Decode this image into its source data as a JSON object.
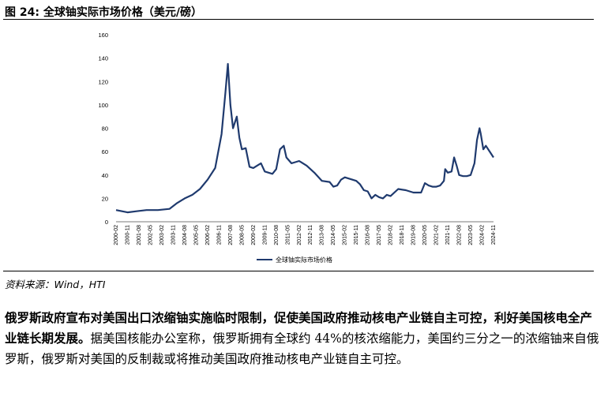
{
  "figure": {
    "title": "图 24:  全球铀实际市场价格（美元/磅）",
    "source": "资料来源：Wind，HTI"
  },
  "paragraph": {
    "bold": "俄罗斯政府宣布对美国出口浓缩铀实施临时限制，促使美国政府推动核电产业链自主可控，利好美国核电全产业链长期发展。",
    "normal": "据美国核能办公室称，俄罗斯拥有全球约 44%的核浓缩能力，美国约三分之一的浓缩铀来自俄罗斯，俄罗斯对美国的反制裁或将推动美国政府推动核电产业链自主可控。"
  },
  "chart_data": {
    "type": "line",
    "title": "",
    "xlabel": "",
    "ylabel": "",
    "ylim": [
      0,
      160
    ],
    "yticks": [
      0,
      20,
      40,
      60,
      80,
      100,
      120,
      140,
      160
    ],
    "xticks": [
      "2000-02",
      "2000-11",
      "2001-08",
      "2002-05",
      "2003-02",
      "2003-11",
      "2004-08",
      "2005-05",
      "2006-02",
      "2006-11",
      "2007-08",
      "2008-05",
      "2009-02",
      "2009-11",
      "2010-08",
      "2011-05",
      "2012-02",
      "2012-11",
      "2013-08",
      "2014-05",
      "2015-02",
      "2015-11",
      "2016-08",
      "2017-05",
      "2018-02",
      "2018-11",
      "2019-08",
      "2020-05",
      "2021-02",
      "2021-11",
      "2022-08",
      "2023-05",
      "2024-02",
      "2024-11"
    ],
    "grid": false,
    "legend_position": "bottom",
    "series_color": "#1f3a6e",
    "series": [
      {
        "name": "全球铀实际市场价格",
        "x": [
          "2000-02",
          "2000-11",
          "2001-06",
          "2002-02",
          "2002-11",
          "2003-08",
          "2004-02",
          "2004-08",
          "2005-02",
          "2005-08",
          "2006-02",
          "2006-08",
          "2007-01",
          "2007-04",
          "2007-06",
          "2007-08",
          "2007-10",
          "2008-01",
          "2008-03",
          "2008-05",
          "2008-08",
          "2008-11",
          "2009-02",
          "2009-05",
          "2009-08",
          "2009-11",
          "2010-02",
          "2010-05",
          "2010-08",
          "2010-11",
          "2011-02",
          "2011-04",
          "2011-08",
          "2011-11",
          "2012-02",
          "2012-08",
          "2013-02",
          "2013-08",
          "2014-02",
          "2014-05",
          "2014-08",
          "2014-11",
          "2015-02",
          "2015-05",
          "2015-08",
          "2015-11",
          "2016-02",
          "2016-05",
          "2016-08",
          "2016-11",
          "2017-02",
          "2017-05",
          "2017-08",
          "2017-11",
          "2018-02",
          "2018-08",
          "2019-02",
          "2019-08",
          "2020-02",
          "2020-05",
          "2020-08",
          "2020-11",
          "2021-02",
          "2021-05",
          "2021-08",
          "2021-09",
          "2021-11",
          "2022-02",
          "2022-04",
          "2022-06",
          "2022-08",
          "2022-11",
          "2023-02",
          "2023-05",
          "2023-08",
          "2023-10",
          "2023-12",
          "2024-01",
          "2024-03",
          "2024-05",
          "2024-08",
          "2024-11"
        ],
        "y": [
          10,
          8,
          9,
          10,
          10,
          11,
          16,
          20,
          23,
          28,
          36,
          46,
          75,
          110,
          135,
          100,
          80,
          90,
          72,
          62,
          63,
          47,
          46,
          48,
          50,
          43,
          42,
          41,
          45,
          62,
          65,
          55,
          50,
          51,
          52,
          48,
          42,
          35,
          34,
          30,
          31,
          36,
          38,
          37,
          36,
          35,
          32,
          27,
          26,
          20,
          23,
          21,
          20,
          23,
          22,
          28,
          27,
          25,
          25,
          33,
          31,
          30,
          30,
          31,
          35,
          45,
          42,
          43,
          55,
          48,
          40,
          39,
          39,
          40,
          50,
          70,
          80,
          75,
          62,
          65,
          60,
          55
        ]
      }
    ]
  }
}
